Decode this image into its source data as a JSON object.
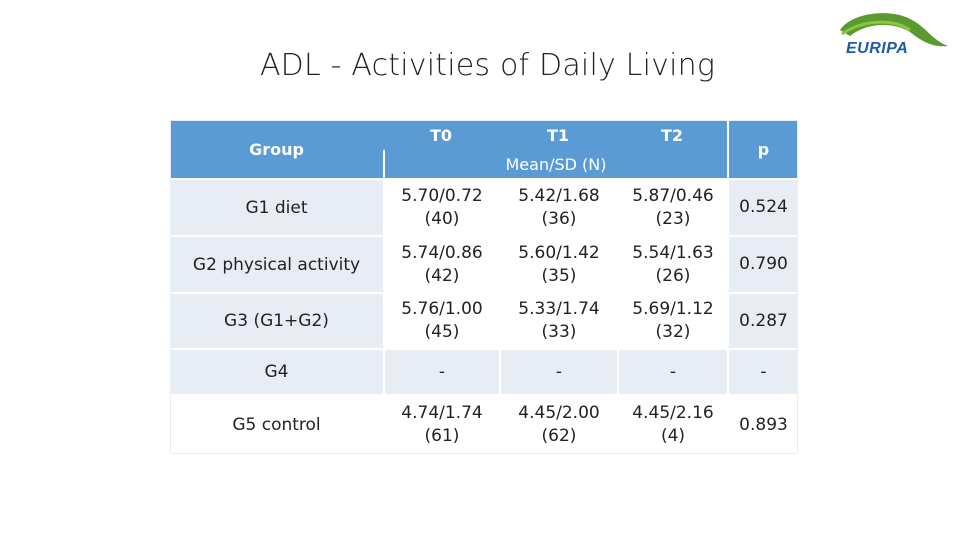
{
  "title": "ADL - Activities of Daily Living",
  "logo": {
    "text": "EURIPA",
    "icon": "leaf-logo-icon",
    "colors": {
      "leaf": "#5a9a2e",
      "text": "#1e5aa6"
    }
  },
  "table": {
    "header": {
      "group": "Group",
      "t0": "T0",
      "t1": "T1",
      "t2": "T2",
      "p": "p",
      "subheader": "Mean/SD (N)"
    },
    "rows": [
      {
        "group": "G1 diet",
        "t0": "5.70/0.72\n(40)",
        "t1": "5.42/1.68\n(36)",
        "t2": "5.87/0.46\n(23)",
        "p": "0.524"
      },
      {
        "group": "G2 physical activity",
        "t0": "5.74/0.86\n(42)",
        "t1": "5.60/1.42\n(35)",
        "t2": "5.54/1.63\n(26)",
        "p": "0.790"
      },
      {
        "group": "G3 (G1+G2)",
        "t0": "5.76/1.00\n(45)",
        "t1": "5.33/1.74\n(33)",
        "t2": "5.69/1.12\n(32)",
        "p": "0.287"
      },
      {
        "group": "G4",
        "t0": "-",
        "t1": "-",
        "t2": "-",
        "p": "-"
      },
      {
        "group": "G5 control",
        "t0": "4.74/1.74\n(61)",
        "t1": "4.45/2.00\n(62)",
        "t2": "4.45/2.16\n(4)",
        "p": "0.893"
      }
    ],
    "colors": {
      "header": "#5b9bd5",
      "row_alt": "#e8ecf5"
    }
  }
}
